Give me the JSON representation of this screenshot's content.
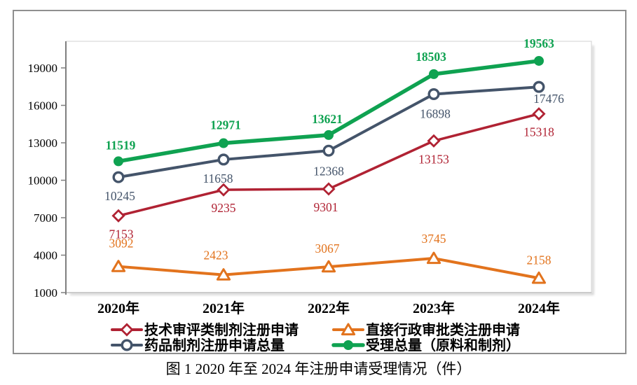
{
  "caption": "图 1  2020 年至 2024 年注册申请受理情况（件）",
  "chart_data": {
    "type": "line",
    "categories": [
      "2020年",
      "2021年",
      "2022年",
      "2023年",
      "2024年"
    ],
    "series": [
      {
        "name": "技术审评类制剂注册申请",
        "values": [
          7153,
          9235,
          9301,
          13153,
          15318
        ],
        "color": "#B02233",
        "marker": "diamond-hollow",
        "label_side": "below",
        "bold_labels": false
      },
      {
        "name": "直接行政审批类注册申请",
        "values": [
          3092,
          2423,
          3067,
          3745,
          2158
        ],
        "color": "#E2731D",
        "marker": "triangle-hollow",
        "label_side": "above",
        "bold_labels": false
      },
      {
        "name": "药品制剂注册申请总量",
        "values": [
          10245,
          11658,
          12368,
          16898,
          17476
        ],
        "color": "#44546A",
        "marker": "circle-hollow",
        "label_side": "below",
        "bold_labels": false
      },
      {
        "name": "受理总量（原料和制剂）",
        "values": [
          11519,
          12971,
          13621,
          18503,
          19563
        ],
        "color": "#0FA251",
        "marker": "circle-filled",
        "label_side": "above",
        "bold_labels": true
      }
    ],
    "y_ticks": [
      1000,
      4000,
      7000,
      10000,
      13000,
      16000,
      19000
    ],
    "ylim": [
      1000,
      21140
    ],
    "grid": false,
    "legend_position": "bottom",
    "style": {
      "figure_border_color": "#8F8F8F",
      "y_axis_color": "#7F7F7F",
      "x_axis_color": "#BFBFBF",
      "plot_border_color": "#D9D9D9",
      "tick_label_color": "#000000",
      "background": "#FFFFFF"
    }
  }
}
